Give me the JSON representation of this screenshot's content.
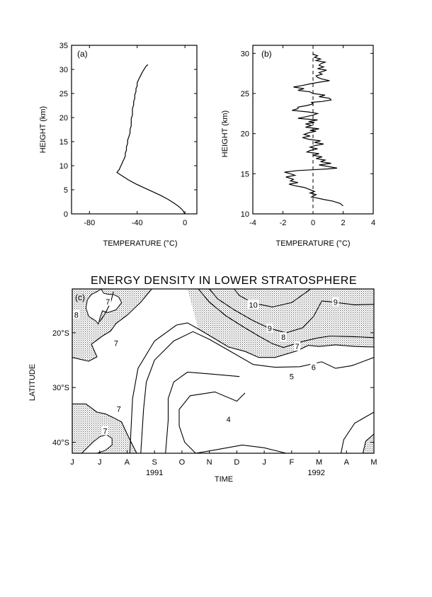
{
  "chart_data": [
    {
      "type": "line",
      "panel_label": "(a)",
      "xlabel": "TEMPERATURE (°C)",
      "ylabel": "HEIGHT (km)",
      "xlim": [
        -95,
        10
      ],
      "ylim": [
        0,
        35
      ],
      "xticks": [
        -80,
        -40,
        0
      ],
      "yticks": [
        0,
        5,
        10,
        15,
        20,
        25,
        30,
        35
      ],
      "series": [
        {
          "x": [
            0,
            -2,
            -5,
            -9,
            -14,
            -20,
            -27,
            -34,
            -41,
            -47,
            -52,
            -57,
            -55,
            -54,
            -53,
            -52,
            -51,
            -50,
            -50,
            -49,
            -49,
            -48,
            -48,
            -47,
            -46,
            -46,
            -45,
            -45,
            -45,
            -44,
            -44,
            -44,
            -43,
            -43,
            -42,
            -42,
            -41,
            -41,
            -40,
            -40,
            -39,
            -38,
            -37,
            -36,
            -35,
            -34,
            -33,
            -32,
            -31
          ],
          "y": [
            0,
            0.8,
            1.5,
            2.2,
            3.0,
            3.8,
            4.6,
            5.4,
            6.2,
            7.0,
            7.8,
            8.6,
            9.2,
            9.8,
            10.3,
            10.9,
            11.4,
            12.0,
            12.6,
            13.2,
            13.9,
            14.6,
            15.3,
            16.0,
            16.8,
            17.5,
            18.3,
            19.0,
            19.8,
            20.5,
            21.2,
            21.9,
            22.6,
            23.3,
            24.0,
            24.7,
            25.4,
            26.0,
            26.6,
            27.2,
            27.8,
            28.3,
            28.8,
            29.3,
            29.7,
            30.1,
            30.5,
            30.8,
            31.0
          ]
        }
      ]
    },
    {
      "type": "line",
      "panel_label": "(b)",
      "xlabel": "TEMPERATURE (°C)",
      "ylabel": "HEIGHT (km)",
      "xlim": [
        -4,
        4
      ],
      "ylim": [
        10,
        31
      ],
      "xticks": [
        -4,
        -2,
        0,
        2,
        4
      ],
      "yticks": [
        10,
        15,
        20,
        25,
        30
      ],
      "reference_line": {
        "x": 0,
        "style": "dashed"
      },
      "series": [
        {
          "x": [
            2.0,
            1.8,
            1.3,
            0.7,
            0.2,
            -0.1,
            0.2,
            -0.2,
            0.1,
            -0.3,
            -0.6,
            -1.2,
            -1.6,
            -1.0,
            -1.5,
            -1.3,
            -1.8,
            -1.2,
            -1.5,
            -1.9,
            -1.0,
            0.0,
            1.0,
            1.6,
            1.0,
            0.4,
            1.2,
            0.5,
            0.8,
            0.2,
            0.6,
            0.0,
            0.4,
            -0.4,
            -0.2,
            0.3,
            -0.2,
            0.1,
            0.7,
            0.1,
            0.5,
            -0.3,
            -0.7,
            -0.2,
            -0.6,
            -0.3,
            0.2,
            -0.2,
            0.4,
            -0.5,
            -0.1,
            -0.5,
            0.1,
            -0.3,
            0.3,
            -1.0,
            -0.5,
            0.0,
            0.3,
            -0.3,
            -1.4,
            -1.0,
            -1.0,
            -0.4,
            0.0,
            -0.1,
            0.6,
            1.2,
            1.1,
            0.4,
            0.8,
            0.0,
            -0.2,
            -1.0,
            -0.6,
            -1.3,
            -0.7,
            -0.2,
            0.4,
            1.1,
            0.6,
            0.3,
            0.2,
            0.6,
            0.4,
            0.9,
            0.3,
            0.7,
            0.4,
            0.5,
            0.8,
            0.2,
            0.5,
            0.1,
            0.3,
            0.0
          ],
          "y": [
            11.0,
            11.3,
            11.6,
            11.8,
            12.0,
            12.1,
            12.4,
            12.6,
            12.8,
            13.1,
            13.3,
            13.5,
            13.7,
            13.9,
            14.1,
            14.3,
            14.6,
            14.8,
            15.0,
            15.2,
            15.4,
            15.5,
            15.6,
            15.7,
            15.9,
            16.1,
            16.3,
            16.5,
            16.7,
            16.9,
            17.1,
            17.3,
            17.5,
            17.7,
            17.9,
            18.1,
            18.3,
            18.5,
            18.7,
            18.9,
            19.1,
            19.3,
            19.5,
            19.7,
            19.9,
            20.1,
            20.3,
            20.4,
            20.6,
            20.8,
            21.0,
            21.2,
            21.4,
            21.5,
            21.7,
            21.9,
            22.1,
            22.3,
            22.5,
            22.7,
            22.9,
            23.1,
            23.3,
            23.5,
            23.7,
            23.9,
            24.0,
            24.2,
            24.4,
            24.6,
            24.8,
            25.0,
            25.2,
            25.4,
            25.6,
            25.8,
            26.0,
            26.2,
            26.4,
            26.6,
            26.8,
            27.0,
            27.2,
            27.4,
            27.6,
            27.9,
            28.1,
            28.3,
            28.5,
            28.7,
            28.9,
            29.1,
            29.3,
            29.5,
            29.7,
            29.9
          ]
        }
      ]
    },
    {
      "type": "contour",
      "panel_label": "(c)",
      "title": "ENERGY DENSITY IN LOWER STRATOSPHERE",
      "xlabel": "TIME",
      "ylabel": "LATITUDE",
      "xlim": [
        0,
        11
      ],
      "ylim": [
        -42,
        -12
      ],
      "x_tick_labels": [
        "J",
        "J",
        "A",
        "S",
        "O",
        "N",
        "D",
        "J",
        "F",
        "M",
        "A",
        "M"
      ],
      "year_labels": [
        {
          "text": "1991",
          "x": 3.0
        },
        {
          "text": "1992",
          "x": 8.9
        }
      ],
      "yticks": [
        {
          "value": -20,
          "label": "20°S"
        },
        {
          "value": -30,
          "label": "30°S"
        },
        {
          "value": -40,
          "label": "40°S"
        }
      ],
      "shading": "values above 7 are stippled",
      "contour_levels": [
        4,
        5,
        6,
        7,
        8,
        9,
        10
      ],
      "contours": [
        {
          "level": 4,
          "x": [
            6.3,
            6.0,
            5.2,
            4.3,
            3.9,
            3.9,
            4.1,
            4.5,
            5.1,
            6.2,
            7.0,
            7.8
          ],
          "y": [
            -31,
            -32.5,
            -30.8,
            -31.5,
            -34,
            -37,
            -40,
            -42,
            -41.5,
            -40.5,
            -41,
            -42
          ]
        },
        {
          "level": 5,
          "x": [
            6.1,
            5.0,
            4.2,
            3.7,
            3.5,
            3.5,
            3.4
          ],
          "y": [
            -28,
            -27.5,
            -27.2,
            -29,
            -32,
            -36,
            -42
          ]
        },
        {
          "level": 6,
          "x": [
            11.0,
            10.2,
            9.6,
            9.1,
            8.3,
            7.4,
            6.6,
            5.7,
            5.0,
            4.4,
            3.7,
            3.0,
            2.7,
            2.6,
            2.5
          ],
          "y": [
            -24.5,
            -26,
            -26.5,
            -25.3,
            -26.2,
            -26.3,
            -25.8,
            -23.2,
            -21.2,
            -19.8,
            -21.5,
            -25,
            -29,
            -34,
            -42
          ]
        },
        {
          "level": 7,
          "x": [
            11.0,
            10.3,
            9.6,
            9.0,
            8.6,
            8.2,
            7.4,
            6.8,
            6.3,
            5.7,
            5.2,
            4.6,
            4.2,
            3.8,
            3.0,
            2.4,
            2.2,
            2.1
          ],
          "y": [
            -22.6,
            -22.5,
            -22.2,
            -22.5,
            -22.3,
            -23.3,
            -24.5,
            -24.5,
            -23.4,
            -22.6,
            -21.1,
            -19.3,
            -18.2,
            -18.6,
            -21.5,
            -26.5,
            -32,
            -42
          ]
        },
        {
          "level": 8,
          "x": [
            11.0,
            10.2,
            9.4,
            8.9,
            8.4,
            7.7,
            7.3,
            6.8,
            6.2,
            5.6,
            5.0,
            4.6
          ],
          "y": [
            -20.9,
            -20.7,
            -20.6,
            -21.0,
            -21.6,
            -22.7,
            -22.0,
            -20.6,
            -18.8,
            -16.9,
            -14.4,
            -12.0
          ]
        },
        {
          "level": 9,
          "x": [
            11.0,
            10.3,
            9.5,
            9.1,
            8.8,
            8.4,
            7.8,
            7.2,
            6.6,
            5.9,
            5.3,
            5.0
          ],
          "y": [
            -14.8,
            -14.9,
            -14.4,
            -14.2,
            -17.0,
            -19.1,
            -20.0,
            -19.2,
            -17.8,
            -15.8,
            -13.8,
            -12.0
          ]
        },
        {
          "level": 10,
          "x": [
            8.7,
            8.0,
            7.3,
            6.6,
            6.1,
            5.9
          ],
          "y": [
            -12.0,
            -14.5,
            -15.3,
            -14.6,
            -13.2,
            -12.0
          ]
        },
        {
          "level": 10,
          "x": [
            6.3,
            6.7
          ],
          "y": [
            -12.0,
            -12.0
          ]
        },
        {
          "level": 7,
          "x": [
            0.0,
            0.6,
            0.9,
            0.7,
            1.1,
            1.4,
            1.6,
            2.0,
            2.5,
            2.9
          ],
          "y": [
            -24.5,
            -25.2,
            -24.4,
            -22.1,
            -20.6,
            -19.7,
            -18.3,
            -16.8,
            -14.4,
            -12.0
          ]
        },
        {
          "level": 8,
          "x": [
            1.0,
            1.2,
            1.4,
            1.45,
            1.5
          ],
          "y": [
            -18.0,
            -16.5,
            -14.5,
            -13.5,
            -12.5
          ]
        },
        {
          "level": 7,
          "x": [
            0.0,
            0.5,
            0.9,
            1.2,
            1.5,
            1.8,
            2.0,
            2.2,
            2.35
          ],
          "y": [
            -33.0,
            -33.0,
            -34.5,
            -34.8,
            -35.5,
            -36.3,
            -38.5,
            -40.5,
            -42.0
          ]
        },
        {
          "level": 7,
          "x": [
            11.0,
            10.3,
            9.9,
            9.8
          ],
          "y": [
            -34.5,
            -36.5,
            -39.5,
            -42.0
          ]
        },
        {
          "level": 7,
          "x": [
            11.0,
            10.7,
            10.6
          ],
          "y": [
            -38.5,
            -39.8,
            -42.0
          ]
        }
      ],
      "contour_labels": [
        {
          "text": "4",
          "x": 5.7,
          "y": -35.8
        },
        {
          "text": "5",
          "x": 8.0,
          "y": -28.0
        },
        {
          "text": "6",
          "x": 8.8,
          "y": -26.3
        },
        {
          "text": "7",
          "x": 8.2,
          "y": -22.5
        },
        {
          "text": "8",
          "x": 7.7,
          "y": -20.8
        },
        {
          "text": "9",
          "x": 7.2,
          "y": -19.2
        },
        {
          "text": "10",
          "x": 6.6,
          "y": -14.9
        },
        {
          "text": "9",
          "x": 9.6,
          "y": -14.4
        },
        {
          "text": "8",
          "x": 0.15,
          "y": -16.7
        },
        {
          "text": "7",
          "x": 1.3,
          "y": -14.3
        },
        {
          "text": "7",
          "x": 1.6,
          "y": -21.9
        },
        {
          "text": "7",
          "x": 1.7,
          "y": -33.9
        },
        {
          "text": "7",
          "x": 1.2,
          "y": -37.9
        }
      ],
      "shaded_regions": [
        {
          "x": [
            0.0,
            0.6,
            0.9,
            0.7,
            1.1,
            1.4,
            1.6,
            2.0,
            2.5,
            2.9,
            0.0
          ],
          "y": [
            -24.5,
            -25.2,
            -24.4,
            -22.1,
            -20.6,
            -19.7,
            -18.3,
            -16.8,
            -14.4,
            -12.0,
            -12.0
          ]
        },
        {
          "x": [
            4.2,
            4.6,
            5.2,
            5.7,
            6.3,
            6.8,
            7.4,
            8.2,
            8.6,
            9.0,
            9.6,
            10.3,
            11.0,
            11.0,
            4.2
          ],
          "y": [
            -12.0,
            -19.3,
            -21.1,
            -22.6,
            -23.4,
            -24.5,
            -24.5,
            -23.3,
            -22.3,
            -22.5,
            -22.2,
            -22.5,
            -22.6,
            -12.0,
            -12.0
          ]
        },
        {
          "x": [
            0.0,
            0.5,
            0.9,
            1.2,
            1.5,
            1.8,
            2.0,
            2.2,
            2.35,
            0.0
          ],
          "y": [
            -33.0,
            -33.0,
            -34.5,
            -34.8,
            -35.5,
            -36.3,
            -38.5,
            -40.5,
            -42.0,
            -42.0
          ]
        },
        {
          "x": [
            11.0,
            10.7,
            10.6,
            11.0
          ],
          "y": [
            -38.5,
            -39.8,
            -42.0,
            -42.0
          ]
        }
      ],
      "white_patches": [
        {
          "x": [
            1.05,
            1.15,
            1.35,
            1.5,
            1.7,
            1.8,
            1.6,
            1.3,
            1.1,
            1.0,
            0.95,
            0.85,
            0.6,
            0.5,
            0.55,
            0.7,
            0.9,
            1.0,
            1.05
          ],
          "y": [
            -12.0,
            -12.8,
            -13.0,
            -13.0,
            -13.5,
            -14.5,
            -15.8,
            -16.3,
            -16.0,
            -17.5,
            -18.4,
            -17.8,
            -17.0,
            -15.5,
            -14.0,
            -13.0,
            -12.5,
            -12.2,
            -12.0
          ]
        },
        {
          "x": [
            0.35,
            0.55,
            0.75,
            1.0,
            1.25,
            1.45,
            1.45,
            1.2,
            0.9,
            0.6,
            0.4,
            0.35
          ],
          "y": [
            -42.0,
            -41.0,
            -40.0,
            -39.0,
            -38.6,
            -39.3,
            -40.5,
            -41.5,
            -42.0,
            -42.0,
            -42.0,
            -42.0
          ]
        }
      ]
    }
  ]
}
